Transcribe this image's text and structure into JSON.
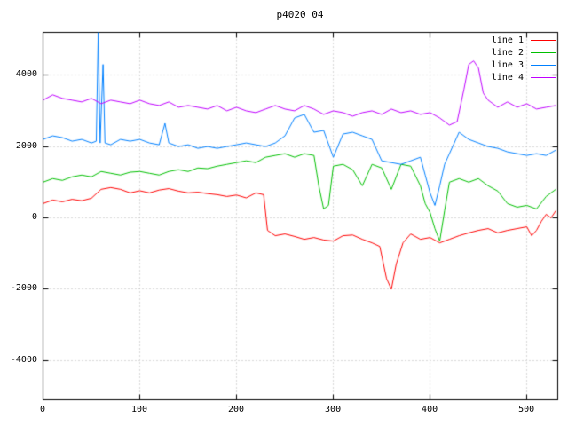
{
  "chart_data": {
    "type": "line",
    "title": "p4020_04",
    "xlabel": "",
    "ylabel": "",
    "xlim": [
      0,
      532
    ],
    "ylim": [
      -5100,
      5200
    ],
    "xticks": [
      0,
      100,
      200,
      300,
      400,
      500
    ],
    "yticks": [
      -4000,
      -2000,
      0,
      2000,
      4000
    ],
    "grid": true,
    "grid_style": "dotted",
    "legend_position": "top-right",
    "background": "#ffffff",
    "border_color": "#000000",
    "grid_color": "#b3b3b3",
    "series": [
      {
        "name": "line 1",
        "color": "#ff0000",
        "x": [
          0,
          10,
          20,
          30,
          40,
          50,
          60,
          70,
          80,
          90,
          100,
          110,
          120,
          130,
          140,
          150,
          160,
          170,
          180,
          190,
          200,
          210,
          220,
          228,
          232,
          240,
          250,
          260,
          270,
          280,
          290,
          300,
          310,
          320,
          330,
          340,
          348,
          355,
          360,
          365,
          372,
          380,
          390,
          400,
          410,
          420,
          430,
          440,
          450,
          460,
          470,
          480,
          490,
          500,
          505,
          510,
          515,
          520,
          525,
          530
        ],
        "y": [
          400,
          500,
          450,
          520,
          480,
          550,
          800,
          850,
          800,
          700,
          760,
          700,
          780,
          820,
          750,
          700,
          720,
          680,
          650,
          600,
          640,
          560,
          700,
          650,
          -350,
          -500,
          -450,
          -520,
          -600,
          -550,
          -620,
          -650,
          -500,
          -480,
          -600,
          -700,
          -800,
          -1700,
          -2000,
          -1300,
          -700,
          -450,
          -600,
          -550,
          -700,
          -600,
          -500,
          -420,
          -350,
          -300,
          -420,
          -350,
          -300,
          -250,
          -500,
          -350,
          -100,
          100,
          0,
          200
        ]
      },
      {
        "name": "line 2",
        "color": "#00c000",
        "x": [
          0,
          10,
          20,
          30,
          40,
          50,
          60,
          70,
          80,
          90,
          100,
          110,
          120,
          130,
          140,
          150,
          160,
          170,
          180,
          190,
          200,
          210,
          220,
          230,
          240,
          250,
          260,
          270,
          280,
          285,
          290,
          295,
          300,
          310,
          320,
          330,
          340,
          350,
          360,
          370,
          380,
          390,
          395,
          400,
          405,
          410,
          415,
          420,
          430,
          440,
          450,
          460,
          470,
          480,
          490,
          500,
          510,
          520,
          530
        ],
        "y": [
          1000,
          1100,
          1050,
          1150,
          1200,
          1150,
          1300,
          1250,
          1200,
          1280,
          1300,
          1250,
          1200,
          1300,
          1350,
          1300,
          1400,
          1380,
          1450,
          1500,
          1550,
          1600,
          1550,
          1700,
          1750,
          1800,
          1700,
          1800,
          1750,
          900,
          250,
          350,
          1450,
          1500,
          1350,
          900,
          1500,
          1400,
          800,
          1500,
          1450,
          900,
          400,
          150,
          -300,
          -650,
          200,
          1000,
          1100,
          1000,
          1100,
          900,
          750,
          400,
          300,
          350,
          250,
          600,
          800
        ]
      },
      {
        "name": "line 3",
        "color": "#0080ff",
        "x": [
          0,
          10,
          20,
          30,
          40,
          50,
          55,
          57,
          59,
          62,
          64,
          70,
          80,
          90,
          100,
          110,
          120,
          126,
          130,
          140,
          150,
          160,
          170,
          180,
          190,
          200,
          210,
          220,
          230,
          240,
          250,
          260,
          270,
          280,
          290,
          300,
          310,
          320,
          330,
          340,
          350,
          360,
          370,
          380,
          390,
          395,
          400,
          405,
          410,
          415,
          420,
          430,
          440,
          450,
          460,
          470,
          480,
          490,
          500,
          510,
          520,
          530
        ],
        "y": [
          2200,
          2300,
          2250,
          2150,
          2200,
          2100,
          2150,
          5200,
          2100,
          4300,
          2100,
          2050,
          2200,
          2150,
          2200,
          2100,
          2050,
          2650,
          2100,
          2000,
          2050,
          1950,
          2000,
          1950,
          2000,
          2050,
          2100,
          2050,
          2000,
          2100,
          2300,
          2800,
          2900,
          2400,
          2450,
          1700,
          2350,
          2400,
          2300,
          2200,
          1600,
          1550,
          1500,
          1600,
          1700,
          1200,
          700,
          350,
          900,
          1500,
          1800,
          2400,
          2200,
          2100,
          2000,
          1950,
          1850,
          1800,
          1750,
          1800,
          1750,
          1900
        ]
      },
      {
        "name": "line 4",
        "color": "#c000ff",
        "x": [
          0,
          10,
          20,
          30,
          40,
          50,
          60,
          70,
          80,
          90,
          100,
          110,
          120,
          130,
          140,
          150,
          160,
          170,
          180,
          190,
          200,
          210,
          220,
          230,
          240,
          250,
          260,
          270,
          280,
          290,
          300,
          310,
          320,
          330,
          340,
          350,
          360,
          370,
          380,
          390,
          400,
          410,
          420,
          428,
          435,
          440,
          445,
          450,
          455,
          460,
          470,
          480,
          490,
          500,
          510,
          520,
          530
        ],
        "y": [
          3300,
          3450,
          3350,
          3300,
          3250,
          3350,
          3200,
          3300,
          3250,
          3200,
          3300,
          3200,
          3150,
          3250,
          3100,
          3150,
          3100,
          3050,
          3150,
          3000,
          3100,
          3000,
          2950,
          3050,
          3150,
          3050,
          3000,
          3150,
          3050,
          2900,
          3000,
          2950,
          2850,
          2950,
          3000,
          2900,
          3050,
          2950,
          3000,
          2900,
          2950,
          2800,
          2600,
          2700,
          3600,
          4300,
          4400,
          4200,
          3500,
          3300,
          3100,
          3250,
          3100,
          3200,
          3050,
          3100,
          3150
        ]
      }
    ]
  }
}
